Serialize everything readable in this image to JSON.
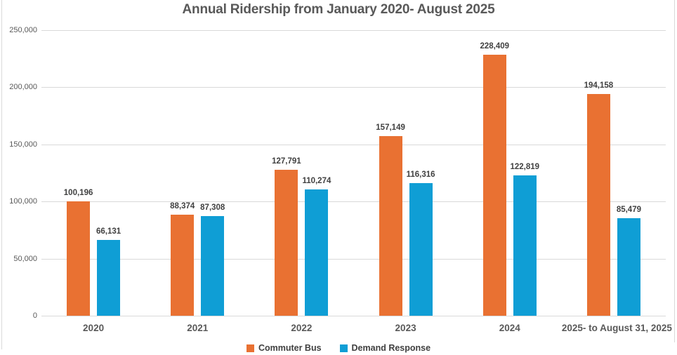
{
  "chart_data": {
    "type": "bar",
    "title": "Annual Ridership from January 2020- August 2025",
    "categories": [
      "2020",
      "2021",
      "2022",
      "2023",
      "2024",
      "2025- to August 31, 2025"
    ],
    "series": [
      {
        "name": "Commuter Bus",
        "color": "#E97132",
        "values": [
          100196,
          88374,
          127791,
          157149,
          228409,
          194158
        ],
        "data_labels": [
          "100,196",
          "88,374",
          "127,791",
          "157,149",
          "228,409",
          "194,158"
        ]
      },
      {
        "name": "Demand Response",
        "color": "#0F9ED5",
        "values": [
          66131,
          87308,
          110274,
          116316,
          122819,
          85479
        ],
        "data_labels": [
          "66,131",
          "87,308",
          "110,274",
          "116,316",
          "122,819",
          "85,479"
        ]
      }
    ],
    "y_axis": {
      "min": 0,
      "max": 250000,
      "step": 50000,
      "tick_labels": [
        "0",
        "50,000",
        "100,000",
        "150,000",
        "200,000",
        "250,000"
      ]
    },
    "legend_position": "bottom",
    "grid": true,
    "colors": {
      "gridline": "#D9D9D9",
      "border": "#D9D9D9",
      "title_text": "#595959",
      "axis_text": "#595959",
      "data_label_text": "#404040"
    }
  }
}
